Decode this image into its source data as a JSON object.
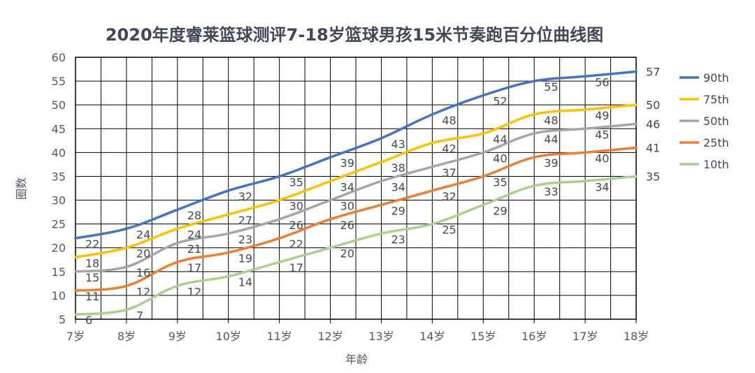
{
  "chart_data": {
    "type": "line",
    "title": "2020年度睿莱篮球测评7-18岁篮球男孩15米节奏跑百分位曲线图",
    "xlabel": "年龄",
    "ylabel": "圈数",
    "categories": [
      "7岁",
      "8岁",
      "9岁",
      "10岁",
      "11岁",
      "12岁",
      "13岁",
      "14岁",
      "15岁",
      "16岁",
      "17岁",
      "18岁"
    ],
    "ylim": [
      5,
      60
    ],
    "yticks": [
      5,
      10,
      15,
      20,
      25,
      30,
      35,
      40,
      45,
      50,
      55,
      60
    ],
    "grid": true,
    "legend_position": "right",
    "series": [
      {
        "name": "90th",
        "color": "#4472c4",
        "values": [
          22,
          24,
          28,
          32,
          35,
          39,
          43,
          48,
          52,
          55,
          56,
          57
        ]
      },
      {
        "name": "75th",
        "color": "#ffc000",
        "values": [
          18,
          20,
          24,
          27,
          30,
          34,
          38,
          42,
          44,
          48,
          49,
          50
        ]
      },
      {
        "name": "50th",
        "color": "#a5a5a5",
        "values": [
          15,
          16,
          21,
          23,
          26,
          30,
          34,
          37,
          40,
          44,
          45,
          46
        ]
      },
      {
        "name": "25th",
        "color": "#ed7d31",
        "values": [
          11,
          12,
          17,
          19,
          22,
          26,
          29,
          32,
          35,
          39,
          40,
          41
        ]
      },
      {
        "name": "10th",
        "color": "#a9d18e",
        "values": [
          6,
          7,
          12,
          14,
          17,
          20,
          23,
          25,
          29,
          33,
          34,
          35
        ]
      }
    ]
  }
}
